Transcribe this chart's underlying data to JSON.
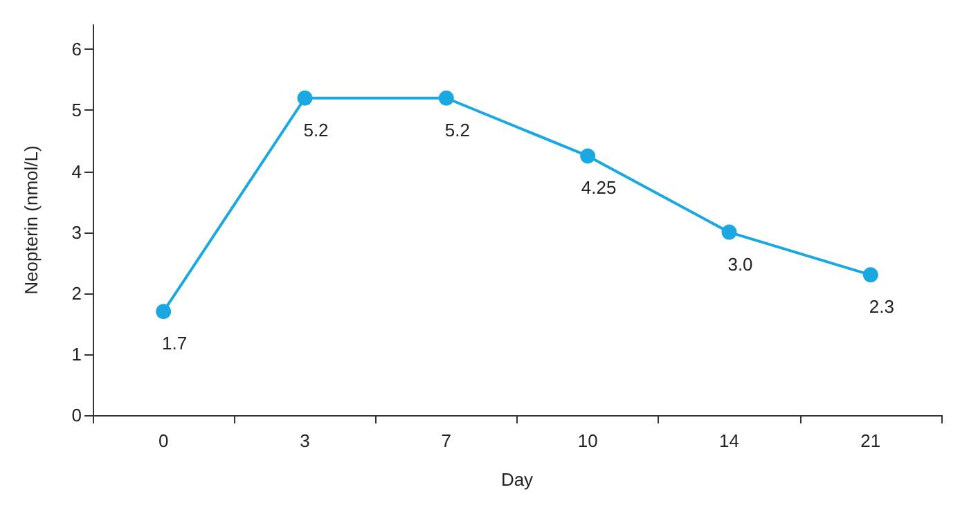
{
  "chart_data": {
    "type": "line",
    "xlabel": "Day",
    "ylabel": "Neopterin (nmol/L)",
    "categories": [
      "0",
      "3",
      "7",
      "10",
      "14",
      "21"
    ],
    "series": [
      {
        "color": "#1ba8e0",
        "values": [
          1.7,
          5.2,
          5.2,
          4.25,
          3.0,
          2.3
        ],
        "value_labels": [
          "1.7",
          "5.2",
          "5.2",
          "4.25",
          "3.0",
          "2.3"
        ]
      }
    ],
    "ylim": [
      0,
      6.4
    ],
    "yticks": [
      0,
      1,
      2,
      3,
      4,
      5,
      6
    ],
    "grid": false,
    "marker": "circle",
    "line_style": "solid"
  }
}
